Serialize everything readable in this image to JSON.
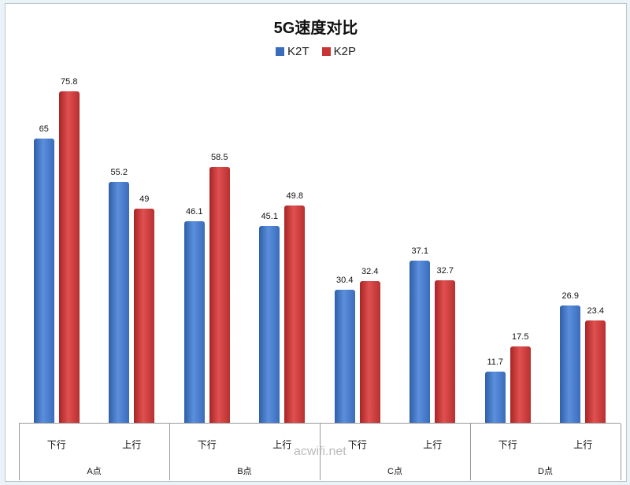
{
  "chart_data": {
    "type": "bar",
    "title": "5G速度对比",
    "legend": [
      "K2T",
      "K2P"
    ],
    "legend_position": "top",
    "group_categories": [
      "A点",
      "B点",
      "C点",
      "D点"
    ],
    "categories": [
      "A点 下行",
      "A点 上行",
      "B点 下行",
      "B点 上行",
      "C点 下行",
      "C点 上行",
      "D点 下行",
      "D点 上行"
    ],
    "sub_categories": [
      "下行",
      "上行"
    ],
    "series": [
      {
        "name": "K2T",
        "color": "#3a6cbc",
        "values": [
          65,
          55.2,
          46.1,
          45.1,
          30.4,
          37.1,
          11.7,
          26.9
        ]
      },
      {
        "name": "K2P",
        "color": "#c83535",
        "values": [
          75.8,
          49,
          58.5,
          49.8,
          32.4,
          32.7,
          17.5,
          23.4
        ]
      }
    ],
    "xlabel": "",
    "ylabel": "",
    "grid": false
  },
  "watermark": "acwifi.net",
  "labels": {
    "sub": [
      "下行",
      "上行",
      "下行",
      "上行",
      "下行",
      "上行",
      "下行",
      "上行"
    ],
    "groups": [
      "A点",
      "B点",
      "C点",
      "D点"
    ],
    "values": {
      "k2t": [
        "65",
        "55.2",
        "46.1",
        "45.1",
        "30.4",
        "37.1",
        "11.7",
        "26.9"
      ],
      "k2p": [
        "75.8",
        "49",
        "58.5",
        "49.8",
        "32.4",
        "32.7",
        "17.5",
        "23.4"
      ]
    }
  }
}
